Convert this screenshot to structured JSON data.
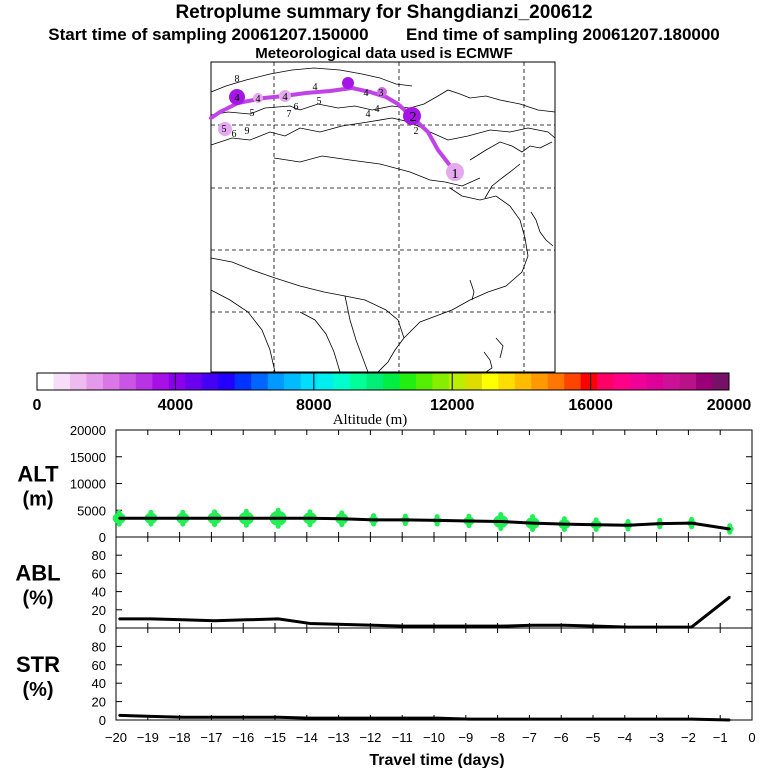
{
  "header": {
    "title": "Retroplume summary for Shangdianzi_200612",
    "start_label": "Start time of sampling 20061207.150000",
    "end_label": "End time of sampling 20061207.180000",
    "met_label": "Meteorological data used is ECMWF"
  },
  "colorbar": {
    "ticks": [
      "0",
      "4000",
      "8000",
      "12000",
      "16000",
      "20000"
    ],
    "label": "Altitude (m)",
    "colors": [
      "#ffffff",
      "#f7ddf7",
      "#efbbef",
      "#e599ea",
      "#d977e6",
      "#c955e4",
      "#b833e4",
      "#a511e6",
      "#8a00ea",
      "#6a00ee",
      "#4400f2",
      "#2200ff",
      "#0033ff",
      "#0066ff",
      "#0099ff",
      "#00bbff",
      "#00ddff",
      "#00eeee",
      "#00ffcc",
      "#00ff99",
      "#00ee77",
      "#00ee44",
      "#22ee11",
      "#55ee00",
      "#88ee00",
      "#bbee00",
      "#dddd00",
      "#ffff00",
      "#ffdd00",
      "#ffbb00",
      "#ff9900",
      "#ff7700",
      "#ff4400",
      "#ff0000",
      "#ff0066",
      "#ff0088",
      "#ee0099",
      "#dd0099",
      "#cc1199",
      "#bb1188",
      "#990077",
      "#771166"
    ]
  },
  "map": {
    "receptor_label": "1",
    "plume_color": "#c355e0",
    "track_labels": [
      "2",
      "3",
      "4",
      "5",
      "6",
      "7",
      "8",
      "9",
      "10"
    ]
  },
  "chart_data": [
    {
      "type": "line",
      "name": "ALT",
      "ylabel": "ALT (m)",
      "ylabel_lines": [
        "ALT",
        "(m)"
      ],
      "ylim": [
        0,
        20000
      ],
      "yticks": [
        "0",
        "5000",
        "10000",
        "15000",
        "20000"
      ],
      "x": [
        -0.7,
        -1.9,
        -2.9,
        -3.9,
        -4.9,
        -5.9,
        -6.9,
        -7.9,
        -8.9,
        -9.9,
        -10.9,
        -11.9,
        -12.9,
        -13.9,
        -14.9,
        -15.9,
        -16.9,
        -17.9,
        -18.9,
        -19.9
      ],
      "y": [
        1500,
        2600,
        2500,
        2200,
        2300,
        2400,
        2600,
        2900,
        3000,
        3100,
        3200,
        3200,
        3400,
        3500,
        3500,
        3500,
        3500,
        3500,
        3500,
        3500
      ],
      "spread": [
        600,
        700,
        600,
        700,
        900,
        1000,
        1200,
        1300,
        900,
        700,
        700,
        800,
        1100,
        1200,
        1500,
        1300,
        1200,
        1100,
        1100,
        1100
      ]
    },
    {
      "type": "line",
      "name": "ABL",
      "ylabel": "ABL (%)",
      "ylabel_lines": [
        "ABL",
        "(%)"
      ],
      "ylim": [
        0,
        100
      ],
      "yticks": [
        "0",
        "20",
        "40",
        "60",
        "80"
      ],
      "x": [
        -0.7,
        -1.9,
        -2.9,
        -3.9,
        -4.9,
        -5.9,
        -6.9,
        -7.9,
        -8.9,
        -9.9,
        -10.9,
        -11.9,
        -12.9,
        -13.9,
        -14.9,
        -15.9,
        -16.9,
        -17.9,
        -18.9,
        -19.9
      ],
      "y": [
        34,
        1,
        1,
        1,
        2,
        3,
        3,
        2,
        2,
        2,
        2,
        3,
        4,
        5,
        10,
        9,
        8,
        9,
        10,
        10
      ]
    },
    {
      "type": "line",
      "name": "STR",
      "ylabel": "STR (%)",
      "ylabel_lines": [
        "STR",
        "(%)"
      ],
      "ylim": [
        0,
        100
      ],
      "yticks": [
        "0",
        "20",
        "40",
        "60",
        "80"
      ],
      "x": [
        -0.7,
        -1.9,
        -2.9,
        -3.9,
        -4.9,
        -5.9,
        -6.9,
        -7.9,
        -8.9,
        -9.9,
        -10.9,
        -11.9,
        -12.9,
        -13.9,
        -14.9,
        -15.9,
        -16.9,
        -17.9,
        -18.9,
        -19.9
      ],
      "y": [
        0,
        1,
        1,
        1,
        1,
        1,
        1,
        1,
        1,
        2,
        2,
        2,
        2,
        2,
        3,
        3,
        3,
        3,
        4,
        5
      ]
    }
  ],
  "xaxis": {
    "xlabel": "Travel time (days)",
    "ticks": [
      "−20",
      "−19",
      "−18",
      "−17",
      "−16",
      "−15",
      "−14",
      "−13",
      "−12",
      "−11",
      "−10",
      "−9",
      "−8",
      "−7",
      "−6",
      "−5",
      "−4",
      "−3",
      "−2",
      "−1",
      "0"
    ],
    "xlim": [
      -20,
      0
    ]
  }
}
